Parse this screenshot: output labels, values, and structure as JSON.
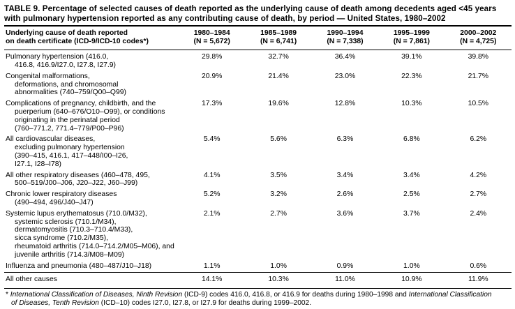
{
  "title": {
    "line1": "TABLE 9. Percentage of selected causes of death reported as the underlying cause of death among decedents aged <45 years",
    "line2": "with pulmonary hypertension reported as any contributing cause of death, by period — United States, 1980–2002"
  },
  "header": {
    "cause_line1": "Underlying cause of death reported",
    "cause_line2": "on death certificate (ICD-9/ICD-10 codes*)",
    "periods": [
      {
        "label": "1980–1984",
        "n": "(N = 5,672)"
      },
      {
        "label": "1985–1989",
        "n": "(N = 6,741)"
      },
      {
        "label": "1990–1994",
        "n": "(N = 7,338)"
      },
      {
        "label": "1995–1999",
        "n": "(N = 7,861)"
      },
      {
        "label": "2000–2002",
        "n": "(N = 4,725)"
      }
    ]
  },
  "rows": [
    {
      "lines": [
        "Pulmonary hypertension (416.0,",
        "416.8, 416.9/I27.0, I27.8, I27.9)"
      ],
      "values": [
        "29.8%",
        "32.7%",
        "36.4%",
        "39.1%",
        "39.8%"
      ]
    },
    {
      "lines": [
        "Congenital malformations,",
        "deformations, and chromosomal",
        "abnormalities (740–759/Q00–Q99)"
      ],
      "values": [
        "20.9%",
        "21.4%",
        "23.0%",
        "22.3%",
        "21.7%"
      ]
    },
    {
      "lines": [
        "Complications of pregnancy, childbirth, and the",
        "puerperium (640–676/O10–O99), or conditions",
        "originating in the perinatal period",
        "(760–771.2, 771.4–779/P00–P96)"
      ],
      "values": [
        "17.3%",
        "19.6%",
        "12.8%",
        "10.3%",
        "10.5%"
      ]
    },
    {
      "lines": [
        "All cardiovascular diseases,",
        "excluding pulmonary hypertension",
        "(390–415, 416.1, 417–448/I00–I26,",
        "I27.1, I28–I78)"
      ],
      "values": [
        "5.4%",
        "5.6%",
        "6.3%",
        "6.8%",
        "6.2%"
      ]
    },
    {
      "lines": [
        "All other respiratory diseases (460–478, 495,",
        "500–519/J00–J06, J20–J22, J60–J99)"
      ],
      "values": [
        "4.1%",
        "3.5%",
        "3.4%",
        "3.4%",
        "4.2%"
      ]
    },
    {
      "lines": [
        "Chronic lower respiratory diseases",
        "(490–494, 496/J40–J47)"
      ],
      "values": [
        "5.2%",
        "3.2%",
        "2.6%",
        "2.5%",
        "2.7%"
      ]
    },
    {
      "lines": [
        "Systemic lupus erythematosus (710.0/M32),",
        "systemic sclerosis (710.1/M34),",
        "dermatomyositis (710.3–710.4/M33),",
        "sicca syndrome (710.2/M35),",
        "rheumatoid arthritis (714.0–714.2/M05–M06), and",
        "juvenile arthritis (714.3/M08–M09)"
      ],
      "values": [
        "2.1%",
        "2.7%",
        "3.6%",
        "3.7%",
        "2.4%"
      ]
    },
    {
      "lines": [
        "Influenza and pneumonia (480–487/J10–J18)"
      ],
      "values": [
        "1.1%",
        "1.0%",
        "0.9%",
        "1.0%",
        "0.6%"
      ]
    },
    {
      "lines": [
        "All other causes"
      ],
      "values": [
        "14.1%",
        "10.3%",
        "11.0%",
        "10.9%",
        "11.9%"
      ]
    }
  ],
  "footnote": {
    "l1p1": "* ",
    "l1p2": "International Classification of Diseases, Ninth Revision",
    "l1p3": " (ICD-9) codes 416.0, 416.8, or 416.9 for deaths during 1980–1998 and ",
    "l1p4": "International Classification",
    "l2p1": "of Diseases, Tenth Revision",
    "l2p2": " (ICD–10) codes I27.0, I27.8, or I27.9 for deaths during 1999–2002."
  }
}
